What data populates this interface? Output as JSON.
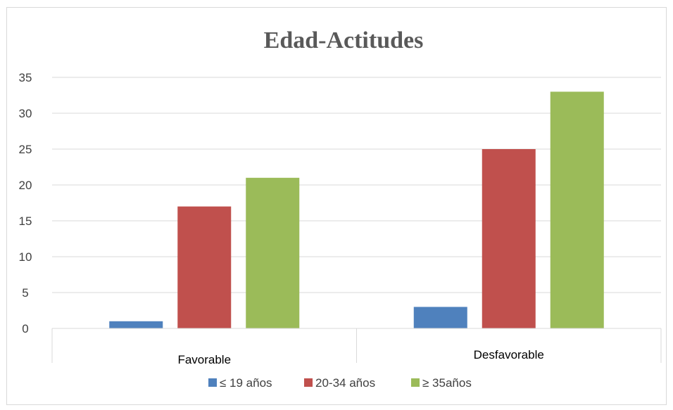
{
  "chart_data": {
    "type": "bar",
    "title": "Edad-Actitudes",
    "xlabel": "",
    "ylabel": "",
    "categories": [
      "Favorable",
      "Desfavorable"
    ],
    "series": [
      {
        "name": "≤ 19 años",
        "values": [
          1,
          3
        ],
        "color": "#4f81bd"
      },
      {
        "name": "20-34 años",
        "values": [
          17,
          25
        ],
        "color": "#c0504d"
      },
      {
        "name": "≥ 35años",
        "values": [
          21,
          33
        ],
        "color": "#9bbb59"
      }
    ],
    "ylim": [
      0,
      35
    ],
    "yticks": [
      0,
      5,
      10,
      15,
      20,
      25,
      30,
      35
    ],
    "grid": true,
    "legend": "bottom"
  }
}
